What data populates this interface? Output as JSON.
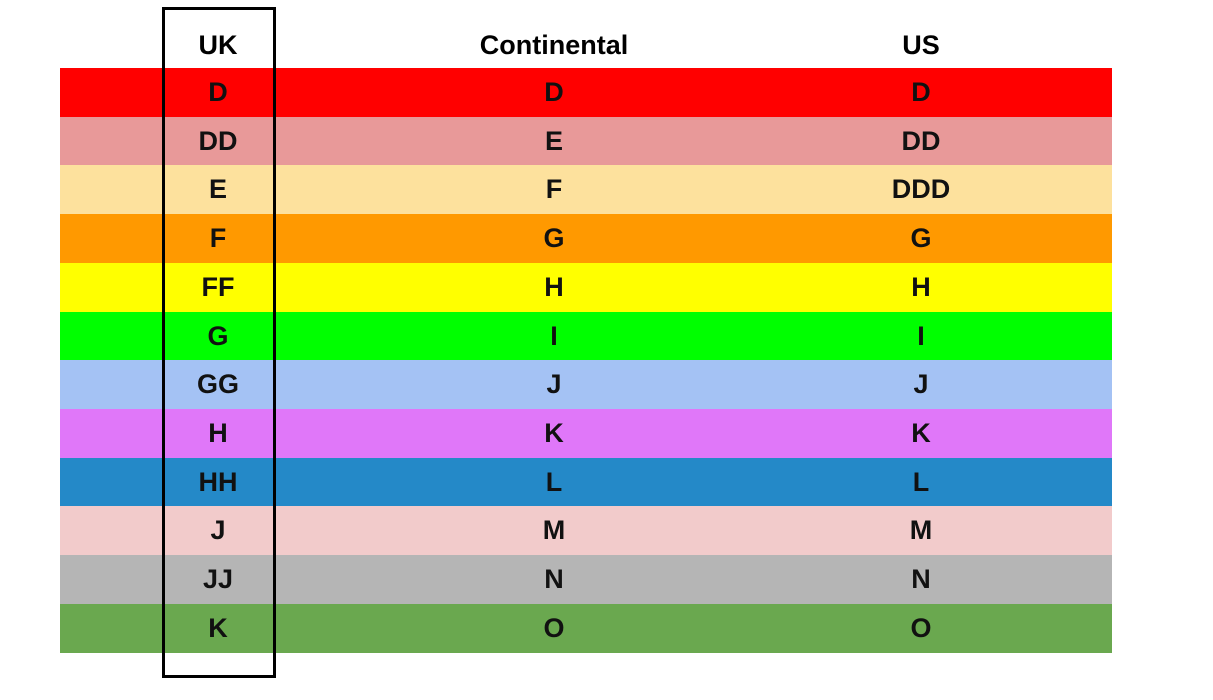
{
  "table": {
    "header": [
      "UK",
      "Continental",
      "US"
    ],
    "rows": [
      [
        "D",
        "D",
        "D"
      ],
      [
        "DD",
        "E",
        "DD"
      ],
      [
        "E",
        "F",
        "DDD"
      ],
      [
        "F",
        "G",
        "G"
      ],
      [
        "FF",
        "H",
        "H"
      ],
      [
        "G",
        "I",
        "I"
      ],
      [
        "GG",
        "J",
        "J"
      ],
      [
        "H",
        "K",
        "K"
      ],
      [
        "HH",
        "L",
        "L"
      ],
      [
        "J",
        "M",
        "M"
      ],
      [
        "JJ",
        "N",
        "N"
      ],
      [
        "K",
        "O",
        "O"
      ]
    ]
  }
}
